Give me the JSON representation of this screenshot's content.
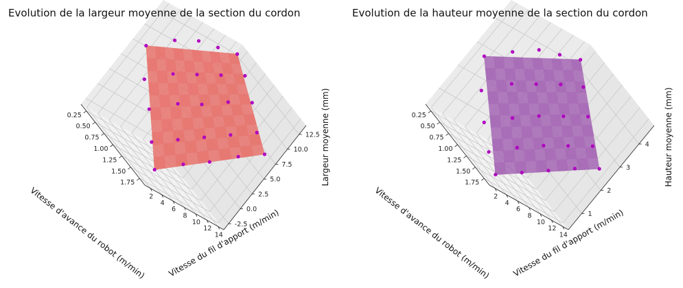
{
  "chart_data": [
    {
      "type": "surface3d",
      "title": "Evolution de la largeur moyenne de la section du cordon",
      "xlabel": "Vitesse d'avance du robot (m/min)",
      "ylabel": "Vitesse du fil d'apport (m/min)",
      "zlabel": "Largeur moyenne (mm)",
      "xticks": [
        "0.25",
        "0.50",
        "0.75",
        "1.00",
        "1.25",
        "1.50",
        "1.75"
      ],
      "yticks": [
        "2",
        "4",
        "6",
        "8",
        "10",
        "12",
        "14"
      ],
      "zticks": [
        "-2.5",
        "0.0",
        "2.5",
        "5.0",
        "7.5",
        "10.0",
        "12.5"
      ],
      "xlim": [
        0.1,
        1.9
      ],
      "ylim": [
        1,
        15
      ],
      "zlim": [
        -3.5,
        14
      ],
      "grid": true,
      "surface_color": "#e8706a",
      "point_color": "#b000c0",
      "surface": {
        "corners": [
          {
            "x": 0.25,
            "y": 2,
            "z": 8.0
          },
          {
            "x": 0.25,
            "y": 14,
            "z": 13.0
          },
          {
            "x": 1.75,
            "y": 14,
            "z": 7.5
          },
          {
            "x": 1.75,
            "y": 2,
            "z": -1.5
          }
        ]
      },
      "points": [
        {
          "x": 0.25,
          "y": 2,
          "z": 8.0
        },
        {
          "x": 0.25,
          "y": 5,
          "z": 10.5
        },
        {
          "x": 0.25,
          "y": 8,
          "z": 12.0
        },
        {
          "x": 0.25,
          "y": 11,
          "z": 12.5
        },
        {
          "x": 0.25,
          "y": 14,
          "z": 13.0
        },
        {
          "x": 0.6,
          "y": 2,
          "z": 5.0
        },
        {
          "x": 0.6,
          "y": 5,
          "z": 7.5
        },
        {
          "x": 0.6,
          "y": 8,
          "z": 9.0
        },
        {
          "x": 0.6,
          "y": 11,
          "z": 10.5
        },
        {
          "x": 0.6,
          "y": 14,
          "z": 12.0
        },
        {
          "x": 1.0,
          "y": 2,
          "z": 3.0
        },
        {
          "x": 1.0,
          "y": 5,
          "z": 5.5
        },
        {
          "x": 1.0,
          "y": 8,
          "z": 7.0
        },
        {
          "x": 1.0,
          "y": 11,
          "z": 9.0
        },
        {
          "x": 1.0,
          "y": 14,
          "z": 10.5
        },
        {
          "x": 1.4,
          "y": 2,
          "z": 0.5
        },
        {
          "x": 1.4,
          "y": 5,
          "z": 2.5
        },
        {
          "x": 1.4,
          "y": 8,
          "z": 4.5
        },
        {
          "x": 1.4,
          "y": 11,
          "z": 6.5
        },
        {
          "x": 1.4,
          "y": 14,
          "z": 8.5
        },
        {
          "x": 1.75,
          "y": 2,
          "z": -1.5
        },
        {
          "x": 1.75,
          "y": 5,
          "z": 1.0
        },
        {
          "x": 1.75,
          "y": 8,
          "z": 3.0
        },
        {
          "x": 1.75,
          "y": 11,
          "z": 5.5
        },
        {
          "x": 1.75,
          "y": 14,
          "z": 7.5
        }
      ]
    },
    {
      "type": "surface3d",
      "title": "Evolution de la hauteur moyenne de la section du cordon",
      "xlabel": "Vitesse d'avance du robot (m/min)",
      "ylabel": "Vitesse du fil d'apport (m/min)",
      "zlabel": "Hauteur moyenne (mm)",
      "xticks": [
        "0.25",
        "0.50",
        "0.75",
        "1.00",
        "1.25",
        "1.50",
        "1.75"
      ],
      "yticks": [
        "2",
        "4",
        "6",
        "8",
        "10",
        "12",
        "14"
      ],
      "zticks": [
        "1",
        "2",
        "3",
        "4"
      ],
      "xlim": [
        0.1,
        1.9
      ],
      "ylim": [
        1,
        15
      ],
      "zlim": [
        0.3,
        4.8
      ],
      "grid": true,
      "surface_color": "#a464b4",
      "point_color": "#b000c0",
      "surface": {
        "corners": [
          {
            "x": 0.25,
            "y": 2,
            "z": 2.8
          },
          {
            "x": 0.25,
            "y": 14,
            "z": 4.3
          },
          {
            "x": 1.75,
            "y": 14,
            "z": 2.5
          },
          {
            "x": 1.75,
            "y": 2,
            "z": 0.6
          }
        ]
      },
      "points": [
        {
          "x": 0.25,
          "y": 2,
          "z": 2.8
        },
        {
          "x": 0.25,
          "y": 5,
          "z": 3.4
        },
        {
          "x": 0.25,
          "y": 8,
          "z": 3.9
        },
        {
          "x": 0.25,
          "y": 11,
          "z": 4.1
        },
        {
          "x": 0.25,
          "y": 14,
          "z": 4.3
        },
        {
          "x": 0.6,
          "y": 2,
          "z": 2.0
        },
        {
          "x": 0.6,
          "y": 5,
          "z": 2.7
        },
        {
          "x": 0.6,
          "y": 8,
          "z": 3.1
        },
        {
          "x": 0.6,
          "y": 11,
          "z": 3.5
        },
        {
          "x": 0.6,
          "y": 14,
          "z": 3.8
        },
        {
          "x": 1.0,
          "y": 2,
          "z": 1.4
        },
        {
          "x": 1.0,
          "y": 5,
          "z": 2.0
        },
        {
          "x": 1.0,
          "y": 8,
          "z": 2.5
        },
        {
          "x": 1.0,
          "y": 11,
          "z": 2.9
        },
        {
          "x": 1.0,
          "y": 14,
          "z": 3.3
        },
        {
          "x": 1.4,
          "y": 2,
          "z": 0.9
        },
        {
          "x": 1.4,
          "y": 5,
          "z": 1.5
        },
        {
          "x": 1.4,
          "y": 8,
          "z": 2.0
        },
        {
          "x": 1.4,
          "y": 11,
          "z": 2.4
        },
        {
          "x": 1.4,
          "y": 14,
          "z": 2.8
        },
        {
          "x": 1.75,
          "y": 2,
          "z": 0.6
        },
        {
          "x": 1.75,
          "y": 5,
          "z": 1.1
        },
        {
          "x": 1.75,
          "y": 8,
          "z": 1.6
        },
        {
          "x": 1.75,
          "y": 11,
          "z": 2.1
        },
        {
          "x": 1.75,
          "y": 14,
          "z": 2.5
        }
      ]
    }
  ]
}
